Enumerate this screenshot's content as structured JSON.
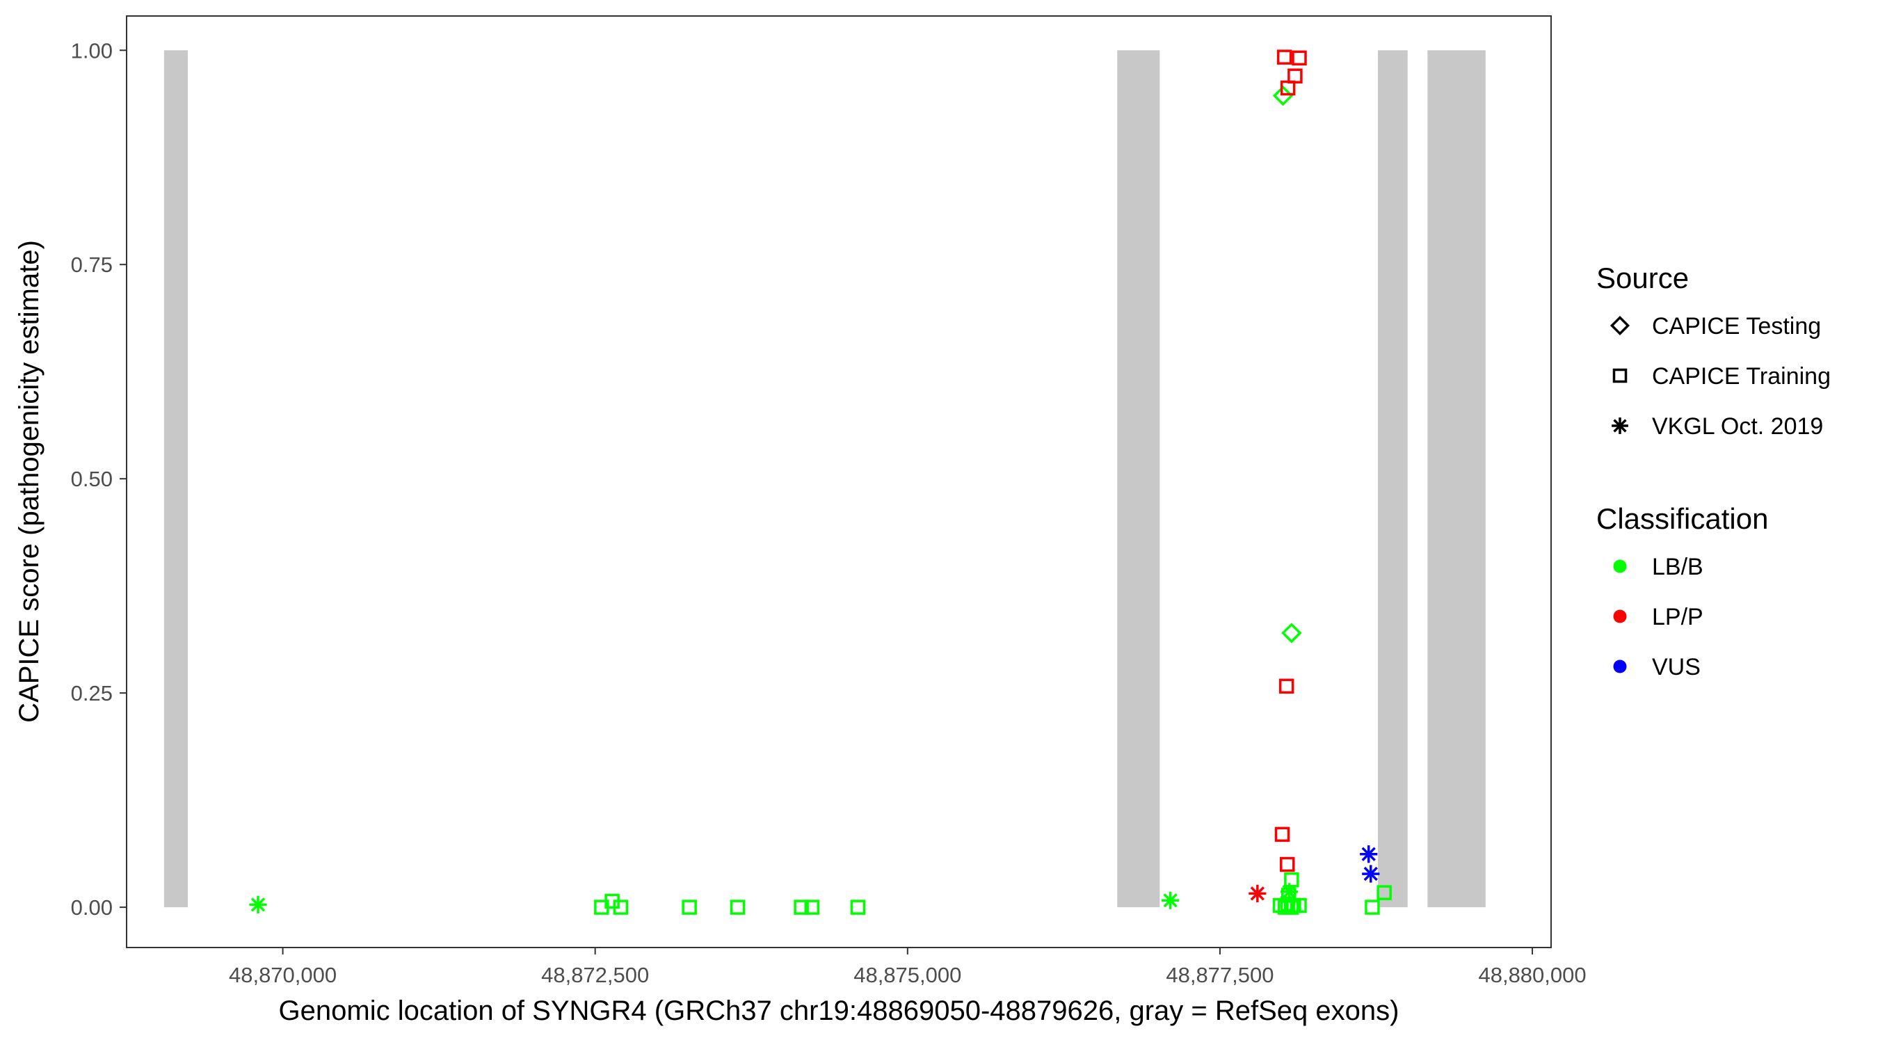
{
  "chart_data": {
    "type": "scatter",
    "xlabel": "Genomic location of SYNGR4 (GRCh37 chr19:48869050-48879626, gray = RefSeq exons)",
    "ylabel": "CAPICE score (pathogenicity estimate)",
    "xlim": [
      48868750,
      48880150
    ],
    "ylim": [
      -0.047,
      1.04
    ],
    "x_ticks": [
      {
        "value": 48870000,
        "label": "48,870,000"
      },
      {
        "value": 48872500,
        "label": "48,872,500"
      },
      {
        "value": 48875000,
        "label": "48,875,000"
      },
      {
        "value": 48877500,
        "label": "48,877,500"
      },
      {
        "value": 48880000,
        "label": "48,880,000"
      }
    ],
    "y_ticks": [
      {
        "value": 0,
        "label": "0.00"
      },
      {
        "value": 0.25,
        "label": "0.25"
      },
      {
        "value": 0.5,
        "label": "0.50"
      },
      {
        "value": 0.75,
        "label": "0.75"
      },
      {
        "value": 1,
        "label": "1.00"
      }
    ],
    "grid": false,
    "exon_color": "#c8c8c8",
    "exons": [
      {
        "start": 48869050,
        "end": 48869240
      },
      {
        "start": 48876678,
        "end": 48877018
      },
      {
        "start": 48878764,
        "end": 48879002
      },
      {
        "start": 48879161,
        "end": 48879626
      }
    ],
    "legend_placement": "right",
    "legends": [
      {
        "title": "Source",
        "entries": [
          {
            "label": "CAPICE Testing",
            "shape": "diamond"
          },
          {
            "label": "CAPICE Training",
            "shape": "square"
          },
          {
            "label": "VKGL Oct. 2019",
            "shape": "asterisk"
          }
        ]
      },
      {
        "title": "Classification",
        "entries": [
          {
            "label": "LB/B",
            "color": "#00ff00"
          },
          {
            "label": "LP/P",
            "color": "#ff0000"
          },
          {
            "label": "VUS",
            "color": "#0000ff"
          }
        ]
      }
    ],
    "points": [
      {
        "x": 48869802,
        "y": 0.003,
        "source": "VKGL Oct. 2019",
        "class": "LB/B"
      },
      {
        "x": 48872551,
        "y": 0.0,
        "source": "CAPICE Training",
        "class": "LB/B"
      },
      {
        "x": 48872636,
        "y": 0.007,
        "source": "CAPICE Training",
        "class": "LB/B"
      },
      {
        "x": 48872704,
        "y": 0.0,
        "source": "CAPICE Training",
        "class": "LB/B"
      },
      {
        "x": 48873254,
        "y": 0.0,
        "source": "CAPICE Training",
        "class": "LB/B"
      },
      {
        "x": 48873640,
        "y": 0.0,
        "source": "CAPICE Training",
        "class": "LB/B"
      },
      {
        "x": 48874150,
        "y": 0.0,
        "source": "CAPICE Training",
        "class": "LB/B"
      },
      {
        "x": 48874235,
        "y": 0.0,
        "source": "CAPICE Training",
        "class": "LB/B"
      },
      {
        "x": 48874603,
        "y": 0.0,
        "source": "CAPICE Training",
        "class": "LB/B"
      },
      {
        "x": 48877103,
        "y": 0.008,
        "source": "VKGL Oct. 2019",
        "class": "LB/B"
      },
      {
        "x": 48877800,
        "y": 0.016,
        "source": "VKGL Oct. 2019",
        "class": "LP/P"
      },
      {
        "x": 48877982,
        "y": 0.002,
        "source": "CAPICE Training",
        "class": "LB/B"
      },
      {
        "x": 48878022,
        "y": 0.0,
        "source": "CAPICE Training",
        "class": "LB/B"
      },
      {
        "x": 48878044,
        "y": 0.004,
        "source": "CAPICE Training",
        "class": "LB/B"
      },
      {
        "x": 48878072,
        "y": 0.0,
        "source": "CAPICE Training",
        "class": "LB/B"
      },
      {
        "x": 48878090,
        "y": 0.002,
        "source": "CAPICE Training",
        "class": "LB/B"
      },
      {
        "x": 48878135,
        "y": 0.002,
        "source": "CAPICE Training",
        "class": "LB/B"
      },
      {
        "x": 48878050,
        "y": 0.014,
        "source": "CAPICE Training",
        "class": "LB/B"
      },
      {
        "x": 48878055,
        "y": 0.018,
        "source": "VKGL Oct. 2019",
        "class": "LB/B"
      },
      {
        "x": 48878073,
        "y": 0.032,
        "source": "CAPICE Training",
        "class": "LB/B"
      },
      {
        "x": 48878039,
        "y": 0.05,
        "source": "CAPICE Training",
        "class": "LP/P"
      },
      {
        "x": 48877999,
        "y": 0.085,
        "source": "CAPICE Training",
        "class": "LP/P"
      },
      {
        "x": 48878033,
        "y": 0.258,
        "source": "CAPICE Training",
        "class": "LP/P"
      },
      {
        "x": 48878073,
        "y": 0.32,
        "source": "CAPICE Testing",
        "class": "LB/B"
      },
      {
        "x": 48878005,
        "y": 0.947,
        "source": "CAPICE Testing",
        "class": "LB/B"
      },
      {
        "x": 48878044,
        "y": 0.956,
        "source": "CAPICE Training",
        "class": "LP/P"
      },
      {
        "x": 48878101,
        "y": 0.97,
        "source": "CAPICE Training",
        "class": "LP/P"
      },
      {
        "x": 48878016,
        "y": 0.992,
        "source": "CAPICE Training",
        "class": "LP/P"
      },
      {
        "x": 48878135,
        "y": 0.991,
        "source": "CAPICE Training",
        "class": "LP/P"
      },
      {
        "x": 48878690,
        "y": 0.062,
        "source": "VKGL Oct. 2019",
        "class": "VUS"
      },
      {
        "x": 48878707,
        "y": 0.039,
        "source": "VKGL Oct. 2019",
        "class": "VUS"
      },
      {
        "x": 48878815,
        "y": 0.017,
        "source": "CAPICE Training",
        "class": "LB/B"
      },
      {
        "x": 48878719,
        "y": 0.0,
        "source": "CAPICE Training",
        "class": "LB/B"
      }
    ]
  }
}
